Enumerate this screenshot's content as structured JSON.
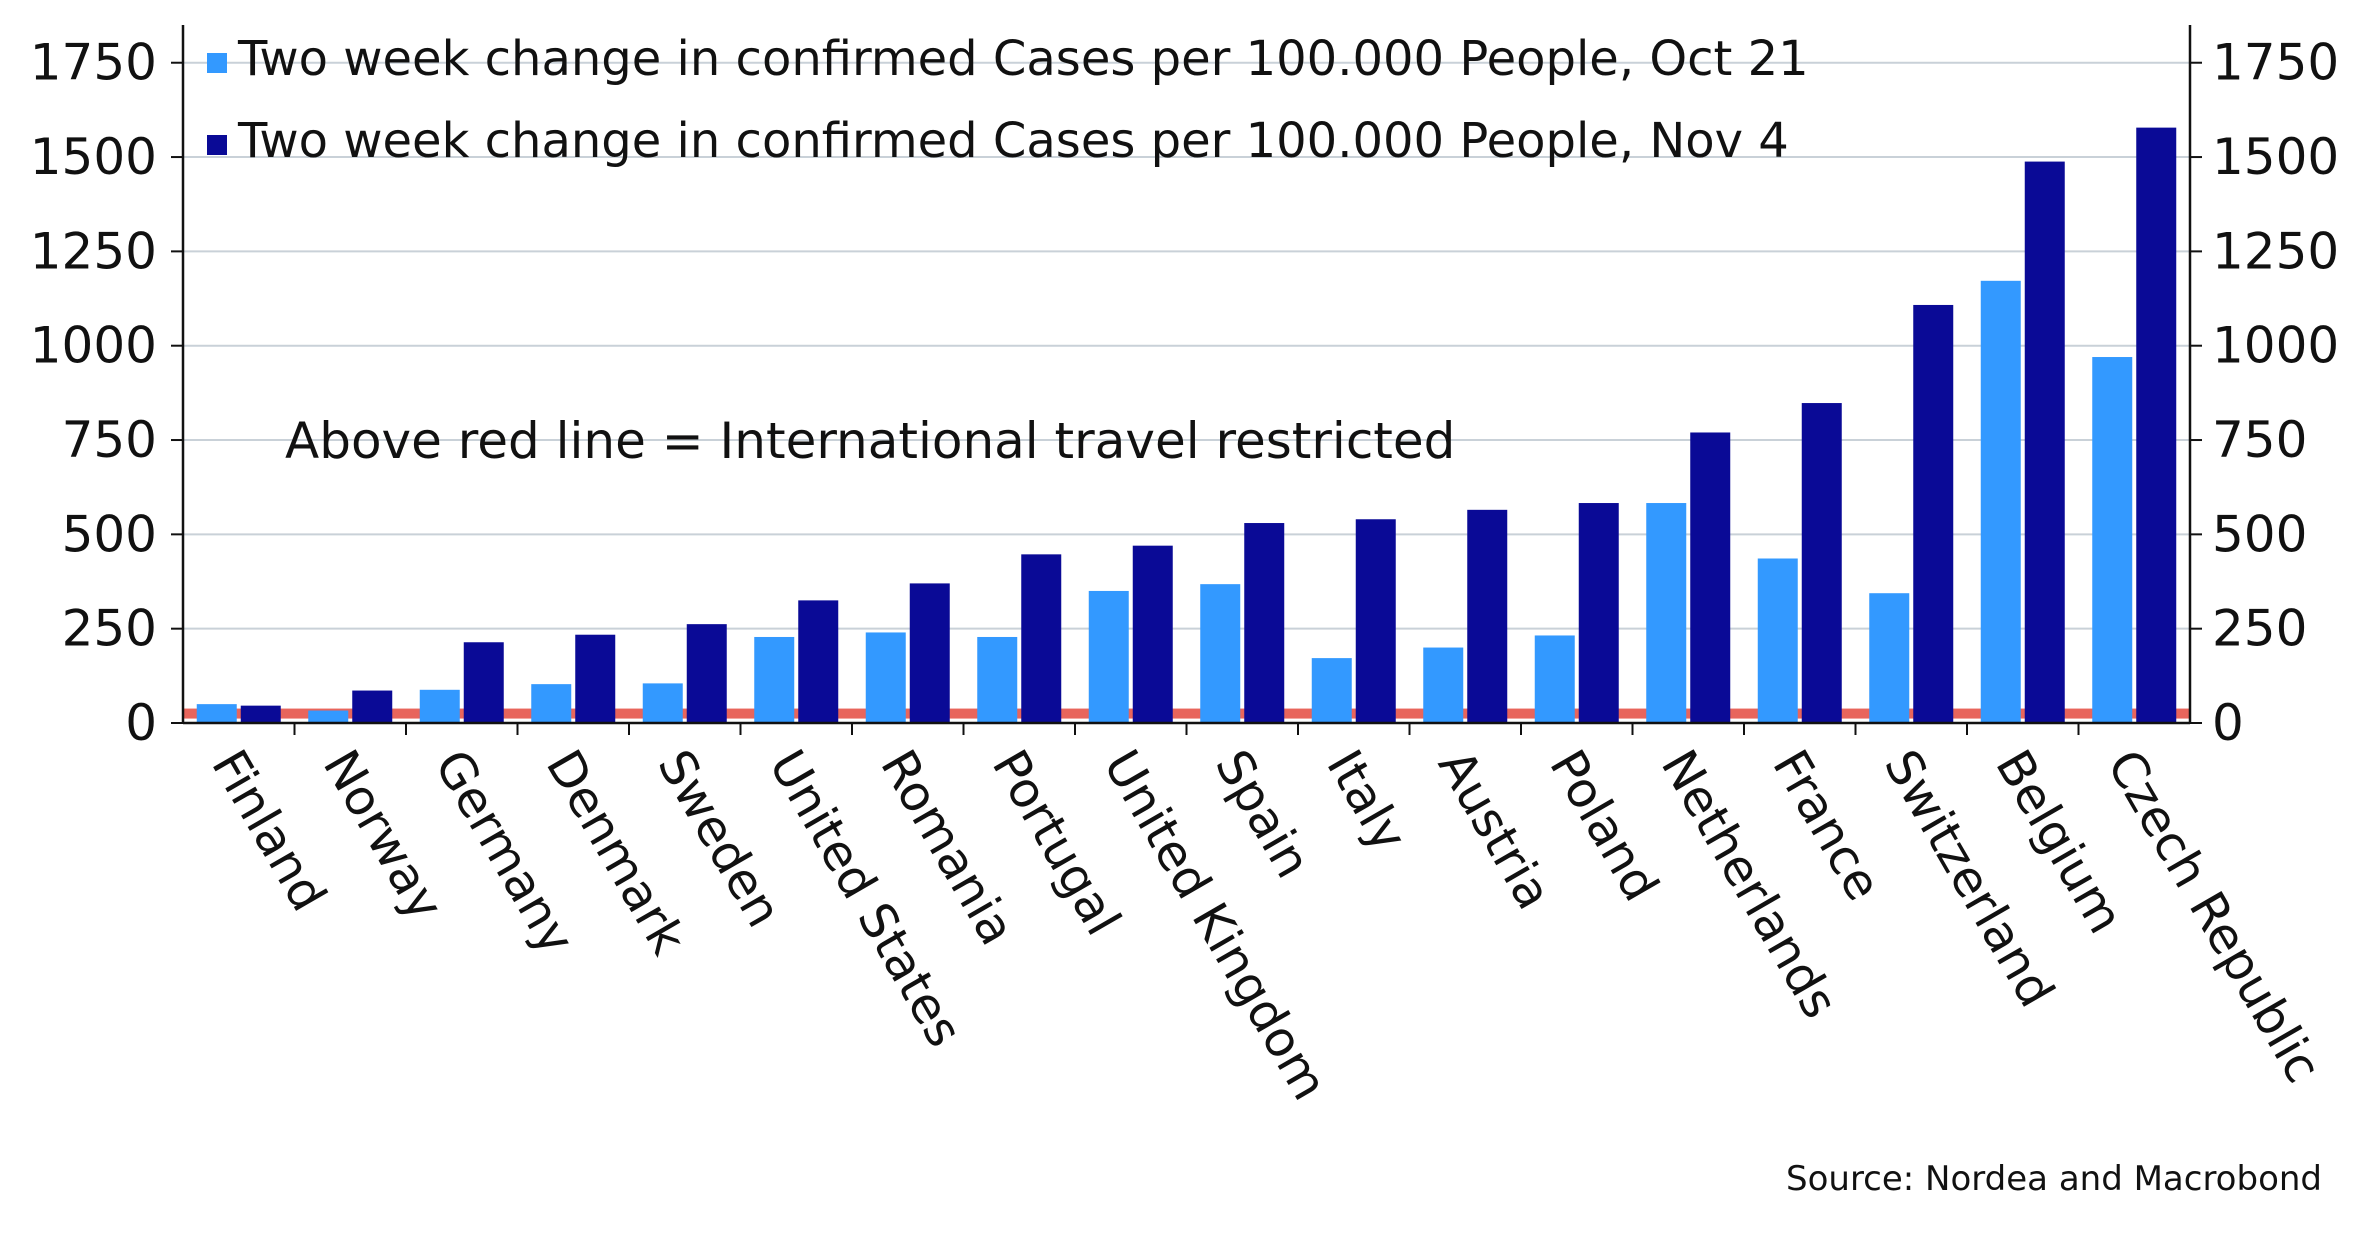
{
  "chart_data": {
    "type": "bar",
    "categories": [
      "Finland",
      "Norway",
      "Germany",
      "Denmark",
      "Sweden",
      "United States",
      "Romania",
      "Portugal",
      "United Kingdom",
      "Spain",
      "Italy",
      "Austria",
      "Poland",
      "Netherlands",
      "France",
      "Switzerland",
      "Belgium",
      "Czech Republic"
    ],
    "series": [
      {
        "name": "Two week change in confirmed Cases per 100.000 People, Oct 21",
        "color": "#3399ff",
        "values": [
          50,
          33,
          88,
          103,
          105,
          228,
          240,
          228,
          350,
          368,
          172,
          200,
          232,
          583,
          436,
          344,
          1172,
          970
        ]
      },
      {
        "name": "Two week change in confirmed Cases per 100.000 People, Nov 4",
        "color": "#0a0a96",
        "values": [
          46,
          86,
          214,
          234,
          262,
          325,
          370,
          447,
          470,
          530,
          540,
          565,
          583,
          770,
          848,
          1108,
          1488,
          1578
        ]
      }
    ],
    "ylim": [
      0,
      1850
    ],
    "yticks": [
      0,
      250,
      500,
      750,
      1000,
      1250,
      1500,
      1750
    ],
    "threshold": {
      "value": 25,
      "color": "#e8655c"
    },
    "annotation": "Above red line = International travel restricted",
    "grid": true,
    "legend_position": "top-left",
    "source": "Source: Nordea and Macrobond"
  }
}
